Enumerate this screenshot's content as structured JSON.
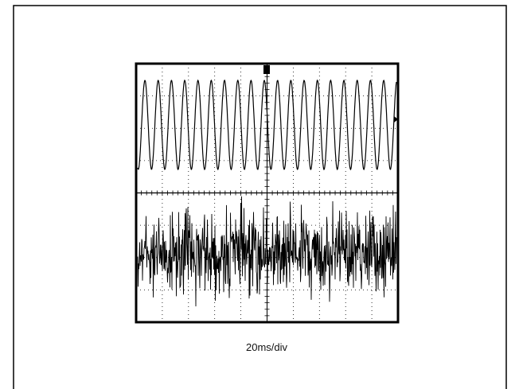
{
  "caption": "20ms/div"
}
